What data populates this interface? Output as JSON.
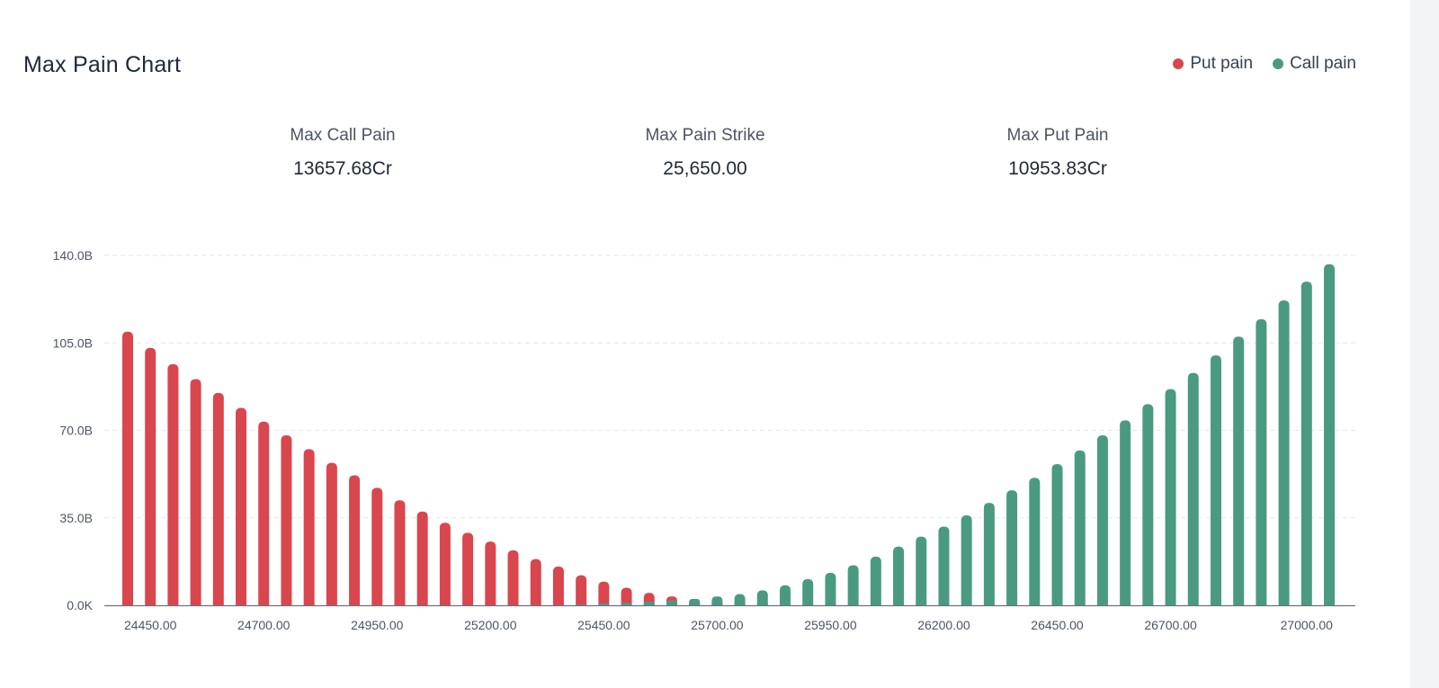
{
  "header": {
    "title": "Max Pain Chart",
    "legend": [
      {
        "label": "Put pain",
        "color": "#d9464e"
      },
      {
        "label": "Call pain",
        "color": "#4a9a82"
      }
    ]
  },
  "stats": [
    {
      "label": "Max Call Pain",
      "value": "13657.68Cr"
    },
    {
      "label": "Max Pain Strike",
      "value": "25,650.00"
    },
    {
      "label": "Max Put Pain",
      "value": "10953.83Cr"
    }
  ],
  "chart_data": {
    "type": "bar",
    "title": "Max Pain Chart",
    "xlabel": "",
    "ylabel": "",
    "ylim": [
      0,
      140
    ],
    "y_unit": "B",
    "y_ticks": [
      "0.0K",
      "35.0B",
      "70.0B",
      "105.0B",
      "140.0B"
    ],
    "x_tick_labels": [
      "24450.00",
      "24700.00",
      "24950.00",
      "25200.00",
      "25450.00",
      "25700.00",
      "25950.00",
      "26200.00",
      "26450.00",
      "26700.00",
      "27000.00"
    ],
    "categories": [
      24400,
      24450,
      24500,
      24550,
      24600,
      24650,
      24700,
      24750,
      24800,
      24850,
      24900,
      24950,
      25000,
      25050,
      25100,
      25150,
      25200,
      25250,
      25300,
      25350,
      25400,
      25450,
      25500,
      25550,
      25600,
      25650,
      25700,
      25750,
      25800,
      25850,
      25900,
      25950,
      26000,
      26050,
      26100,
      26150,
      26200,
      26250,
      26300,
      26350,
      26400,
      26450,
      26500,
      26550,
      26600,
      26650,
      26700,
      26750,
      26800,
      26850,
      26900,
      26950,
      27000,
      27050
    ],
    "series": [
      {
        "name": "Put pain",
        "color": "#d9464e",
        "values": [
          109.5,
          103,
          96.5,
          90.5,
          85,
          79,
          73.5,
          68,
          62.5,
          57,
          52,
          47,
          42,
          37.5,
          33,
          29,
          25.5,
          22,
          18.5,
          15.5,
          12,
          9.5,
          7,
          5,
          3.5,
          2,
          1.5,
          1,
          0.8,
          0.5,
          0.3,
          0.2,
          0.1,
          0,
          0,
          0,
          0,
          0,
          0,
          0,
          0,
          0,
          0,
          0,
          0,
          0,
          0,
          0,
          0,
          0,
          0,
          0,
          0,
          0
        ]
      },
      {
        "name": "Call pain",
        "color": "#4a9a82",
        "values": [
          0,
          0,
          0,
          0,
          0,
          0,
          0,
          0,
          0,
          0,
          0,
          0,
          0,
          0,
          0,
          0,
          0,
          0,
          0,
          0,
          0.3,
          0.7,
          1,
          1.5,
          2,
          2.5,
          3.5,
          4.5,
          6,
          8,
          10.5,
          13,
          16,
          19.5,
          23.5,
          27.5,
          31.5,
          36,
          41,
          46,
          51,
          56.5,
          62,
          68,
          74,
          80.5,
          86.5,
          93,
          100,
          107.5,
          114.5,
          122,
          129.5,
          136.5
        ]
      }
    ],
    "grid": true,
    "legend_position": "top-right"
  }
}
